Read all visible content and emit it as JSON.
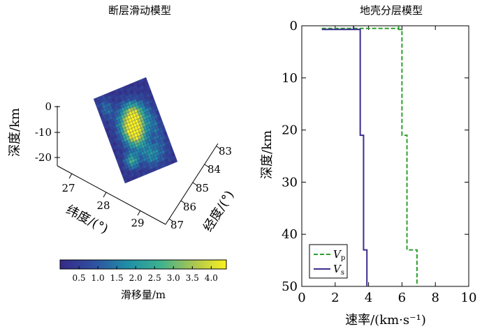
{
  "chart_data": [
    {
      "type": "heatmap",
      "title": "断层滑动模型",
      "depth_label": "深度/km",
      "depth_ticks": [
        "0",
        "-10",
        "-20"
      ],
      "lat_label": "纬度/(°)",
      "lat_ticks": [
        "27",
        "28",
        "29"
      ],
      "lon_label": "经度/(°)",
      "lon_ticks": [
        "83",
        "84",
        "85",
        "86",
        "87"
      ],
      "colorbar": {
        "label": "滑移量/m",
        "ticks": [
          "0.5",
          "1.0",
          "1.5",
          "2.0",
          "2.5",
          "3.0",
          "3.5",
          "4.0"
        ],
        "range": [
          0,
          4.4
        ]
      },
      "grid_size": {
        "cols": 20,
        "rows": 28
      },
      "slip_patches": [
        {
          "u": 0.5,
          "v": 0.42,
          "su": 0.16,
          "sv": 0.13,
          "amp": 3.9
        },
        {
          "u": 0.45,
          "v": 0.56,
          "su": 0.13,
          "sv": 0.11,
          "amp": 2.2
        },
        {
          "u": 0.6,
          "v": 0.3,
          "su": 0.12,
          "sv": 0.08,
          "amp": 1.6
        },
        {
          "u": 0.25,
          "v": 0.8,
          "su": 0.08,
          "sv": 0.06,
          "amp": 2.3
        },
        {
          "u": 0.62,
          "v": 0.82,
          "su": 0.14,
          "sv": 0.09,
          "amp": 1.6
        },
        {
          "u": 0.15,
          "v": 0.15,
          "su": 0.08,
          "sv": 0.08,
          "amp": 1.1
        },
        {
          "u": 0.85,
          "v": 0.55,
          "su": 0.08,
          "sv": 0.2,
          "amp": 0.9
        }
      ]
    },
    {
      "type": "line",
      "title": "地壳分层模型",
      "xlabel": "速率/(km·s⁻¹)",
      "ylabel": "深度/km",
      "xlim": [
        0,
        10
      ],
      "ylim": [
        0,
        50
      ],
      "y_inverted": true,
      "xticks": [
        "0",
        "2",
        "4",
        "6",
        "8",
        "10"
      ],
      "yticks": [
        "0",
        "10",
        "20",
        "30",
        "40",
        "50"
      ],
      "legend_position": "bottom-left",
      "series": [
        {
          "name": "Vp",
          "legend_main": "V",
          "legend_sub": "p",
          "color": "#2ca02c",
          "dash": true,
          "points": [
            [
              1.2,
              0.5
            ],
            [
              4.3,
              0.5
            ],
            [
              5.8,
              0.5
            ],
            [
              5.8,
              0.0
            ],
            [
              5.8,
              0.7
            ],
            [
              6.0,
              0.7
            ],
            [
              6.0,
              21
            ],
            [
              6.3,
              21
            ],
            [
              6.3,
              43
            ],
            [
              6.9,
              43
            ],
            [
              6.9,
              50
            ]
          ]
        },
        {
          "name": "Vs",
          "legend_main": "V",
          "legend_sub": "s",
          "color": "#3a2d8f",
          "dash": false,
          "points": [
            [
              1.2,
              0.7
            ],
            [
              3.1,
              0.7
            ],
            [
              3.1,
              0.0
            ],
            [
              3.1,
              0.7
            ],
            [
              3.5,
              0.7
            ],
            [
              3.5,
              21
            ],
            [
              3.7,
              21
            ],
            [
              3.7,
              43
            ],
            [
              3.9,
              43
            ],
            [
              3.9,
              50
            ]
          ]
        }
      ]
    }
  ]
}
